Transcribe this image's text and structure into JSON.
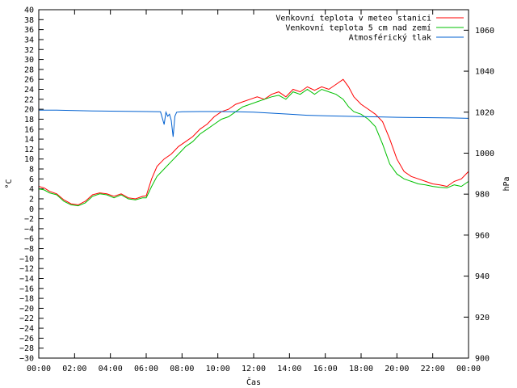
{
  "chart_data": {
    "type": "line",
    "title": "",
    "xlabel": "Čas",
    "ylabel_left": "°C",
    "ylabel_right": "hPa",
    "x_unit": "hours",
    "xlim": [
      0,
      24
    ],
    "ylim_left": [
      -30,
      40
    ],
    "ylim_right": [
      900,
      1070
    ],
    "x_ticks": [
      0,
      2,
      4,
      6,
      8,
      10,
      12,
      14,
      16,
      18,
      20,
      22,
      24
    ],
    "x_tick_labels": [
      "00:00",
      "02:00",
      "04:00",
      "06:00",
      "08:00",
      "10:00",
      "12:00",
      "14:00",
      "16:00",
      "18:00",
      "20:00",
      "22:00",
      "00:00"
    ],
    "y_left_ticks": [
      40,
      38,
      36,
      34,
      32,
      30,
      28,
      26,
      24,
      22,
      20,
      18,
      16,
      14,
      12,
      10,
      8,
      6,
      4,
      2,
      0,
      -2,
      -4,
      -6,
      -8,
      -10,
      -12,
      -14,
      -16,
      -18,
      -20,
      -22,
      -24,
      -26,
      -28,
      -30
    ],
    "y_left_tick_labels": [
      "40",
      "38",
      "36",
      "34",
      "32",
      "30",
      "28",
      "26",
      "24",
      "22",
      "20",
      "18",
      "16",
      "14",
      "12",
      "10",
      "8",
      "6",
      "4",
      "2",
      "0",
      "−2",
      "−4",
      "−6",
      "−8",
      "−10",
      "−12",
      "−14",
      "−16",
      "−18",
      "−20",
      "−22",
      "−24",
      "−26",
      "−28",
      "−30"
    ],
    "y_right_ticks": [
      1060,
      1040,
      1020,
      1000,
      980,
      960,
      940,
      920,
      900
    ],
    "y_right_tick_labels": [
      "1060",
      "1040",
      "1020",
      "1000",
      "980",
      "960",
      "940",
      "920",
      "900"
    ],
    "grid": false,
    "legend_position": "top-right",
    "series": [
      {
        "name": "Venkovní teplota v meteo stanici",
        "color": "#ff0000",
        "axis": "left",
        "x": [
          0,
          0.3,
          0.6,
          1.0,
          1.4,
          1.8,
          2.2,
          2.6,
          3.0,
          3.4,
          3.8,
          4.2,
          4.6,
          5.0,
          5.4,
          5.8,
          6.0,
          6.3,
          6.6,
          7.0,
          7.4,
          7.8,
          8.2,
          8.6,
          9.0,
          9.4,
          9.8,
          10.2,
          10.6,
          11.0,
          11.4,
          11.8,
          12.2,
          12.6,
          13.0,
          13.4,
          13.8,
          14.2,
          14.6,
          15.0,
          15.4,
          15.8,
          16.2,
          16.6,
          17.0,
          17.3,
          17.6,
          18.0,
          18.4,
          18.8,
          19.2,
          19.6,
          20.0,
          20.4,
          20.8,
          21.2,
          21.6,
          22.0,
          22.4,
          22.8,
          23.2,
          23.6,
          24.0
        ],
        "y": [
          4.5,
          4.2,
          3.5,
          3.0,
          1.8,
          1.0,
          0.8,
          1.5,
          2.8,
          3.2,
          3.0,
          2.5,
          3.0,
          2.2,
          2.0,
          2.5,
          2.6,
          6.0,
          8.5,
          10.0,
          11.0,
          12.5,
          13.5,
          14.5,
          16.0,
          17.0,
          18.5,
          19.5,
          20.0,
          21.0,
          21.5,
          22.0,
          22.5,
          22.0,
          23.0,
          23.5,
          22.5,
          24.0,
          23.5,
          24.5,
          23.8,
          24.5,
          24.0,
          25.0,
          26.0,
          24.5,
          22.5,
          21.0,
          20.0,
          19.0,
          17.5,
          14.0,
          10.0,
          7.5,
          6.5,
          6.0,
          5.5,
          5.0,
          4.8,
          4.5,
          5.5,
          6.0,
          7.5
        ]
      },
      {
        "name": "Venkovní teplota 5 cm nad zemí",
        "color": "#00c000",
        "axis": "left",
        "x": [
          0,
          0.3,
          0.6,
          1.0,
          1.4,
          1.8,
          2.2,
          2.6,
          3.0,
          3.4,
          3.8,
          4.2,
          4.6,
          5.0,
          5.4,
          5.8,
          6.0,
          6.3,
          6.6,
          7.0,
          7.4,
          7.8,
          8.2,
          8.6,
          9.0,
          9.4,
          9.8,
          10.2,
          10.6,
          11.0,
          11.4,
          11.8,
          12.2,
          12.6,
          13.0,
          13.4,
          13.8,
          14.2,
          14.6,
          15.0,
          15.4,
          15.8,
          16.2,
          16.6,
          17.0,
          17.3,
          17.6,
          18.0,
          18.4,
          18.8,
          19.2,
          19.6,
          20.0,
          20.4,
          20.8,
          21.2,
          21.6,
          22.0,
          22.4,
          22.8,
          23.2,
          23.6,
          24.0
        ],
        "y": [
          4.0,
          3.8,
          3.2,
          2.8,
          1.5,
          0.8,
          0.6,
          1.2,
          2.5,
          3.0,
          2.8,
          2.2,
          2.8,
          2.0,
          1.8,
          2.2,
          2.2,
          4.5,
          6.5,
          8.0,
          9.5,
          11.0,
          12.5,
          13.5,
          15.0,
          16.0,
          17.0,
          18.0,
          18.5,
          19.5,
          20.5,
          21.0,
          21.5,
          22.0,
          22.5,
          22.8,
          22.0,
          23.5,
          23.0,
          24.0,
          23.0,
          24.0,
          23.5,
          23.0,
          22.0,
          20.5,
          19.5,
          19.0,
          18.0,
          16.5,
          13.0,
          9.0,
          7.0,
          6.0,
          5.5,
          5.0,
          4.8,
          4.5,
          4.3,
          4.2,
          4.8,
          4.5,
          5.5
        ]
      },
      {
        "name": "Atmosférický tlak",
        "color": "#0060d0",
        "axis": "right",
        "x": [
          0,
          1,
          2,
          3,
          4,
          5,
          6,
          6.8,
          7.0,
          7.1,
          7.2,
          7.3,
          7.4,
          7.5,
          7.6,
          7.7,
          8,
          9,
          10,
          11,
          12,
          13,
          14,
          15,
          16,
          17,
          18,
          19,
          20,
          21,
          22,
          23,
          24
        ],
        "y": [
          1021,
          1021,
          1020.8,
          1020.6,
          1020.5,
          1020.4,
          1020.3,
          1020.2,
          1014,
          1020,
          1018,
          1019,
          1016,
          1008,
          1018,
          1020,
          1020.2,
          1020.3,
          1020.3,
          1020.2,
          1020,
          1019.5,
          1019,
          1018.5,
          1018.2,
          1018,
          1017.8,
          1017.7,
          1017.5,
          1017.4,
          1017.3,
          1017.2,
          1017
        ]
      }
    ]
  }
}
